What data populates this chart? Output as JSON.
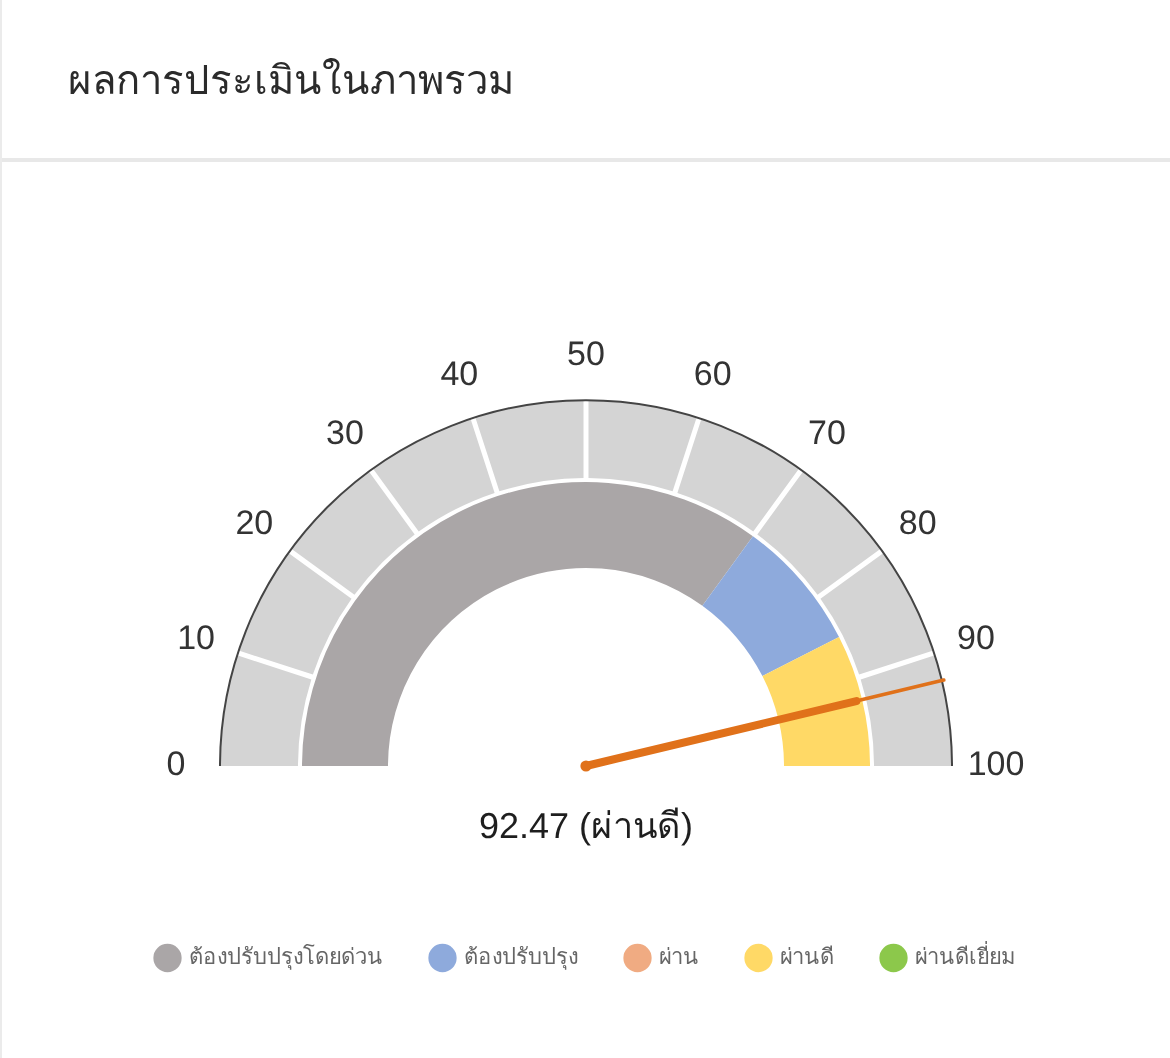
{
  "chart_data": {
    "type": "donut",
    "title": "ผลการประเมินในภาพรวม",
    "categories": [
      "ต้องปรับปรุงโดยด่วน",
      "ต้องปรับปรุง",
      "ผ่าน",
      "ผ่านดี",
      "ผ่านดีเยี่ยม"
    ],
    "values": [
      70,
      15,
      0,
      15,
      0
    ],
    "colors": [
      "#aaa6a7",
      "#8eaadc",
      "#f0ab82",
      "#ffd966",
      "#8cc84b"
    ],
    "needle": "ผ่านดี",
    "annotations": [
      "0",
      "10",
      "20",
      "30",
      "40",
      "50",
      "60",
      "70",
      "80",
      "90",
      "100",
      "92.47 (ผ่านดี)"
    ],
    "legend": "bottom"
  }
}
